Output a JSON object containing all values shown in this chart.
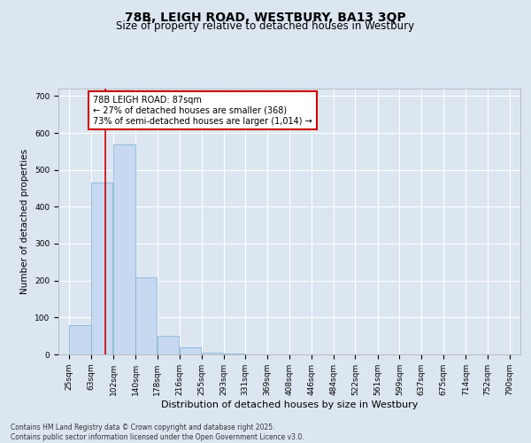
{
  "title_line1": "78B, LEIGH ROAD, WESTBURY, BA13 3QP",
  "title_line2": "Size of property relative to detached houses in Westbury",
  "xlabel": "Distribution of detached houses by size in Westbury",
  "ylabel": "Number of detached properties",
  "bins": [
    25,
    63,
    102,
    140,
    178,
    216,
    255,
    293,
    331,
    369,
    408,
    446,
    484,
    522,
    561,
    599,
    637,
    675,
    714,
    752,
    790
  ],
  "bin_labels": [
    "25sqm",
    "63sqm",
    "102sqm",
    "140sqm",
    "178sqm",
    "216sqm",
    "255sqm",
    "293sqm",
    "331sqm",
    "369sqm",
    "408sqm",
    "446sqm",
    "484sqm",
    "522sqm",
    "561sqm",
    "599sqm",
    "637sqm",
    "675sqm",
    "714sqm",
    "752sqm",
    "790sqm"
  ],
  "bar_values": [
    80,
    465,
    570,
    210,
    50,
    20,
    5,
    2,
    0,
    0,
    0,
    0,
    0,
    0,
    0,
    0,
    0,
    0,
    0,
    0
  ],
  "bar_color": "#c6d9f0",
  "bar_edge_color": "#7bafd4",
  "vline_x": 87,
  "vline_color": "#cc0000",
  "ylim": [
    0,
    720
  ],
  "yticks": [
    0,
    100,
    200,
    300,
    400,
    500,
    600,
    700
  ],
  "annotation_text": "78B LEIGH ROAD: 87sqm\n← 27% of detached houses are smaller (368)\n73% of semi-detached houses are larger (1,014) →",
  "annotation_box_color": "#ffffff",
  "annotation_box_edge": "#cc0000",
  "footer_text": "Contains HM Land Registry data © Crown copyright and database right 2025.\nContains public sector information licensed under the Open Government Licence v3.0.",
  "background_color": "#dce6f1",
  "plot_background_color": "#dce6f1",
  "grid_color": "#ffffff",
  "title1_fontsize": 10,
  "title2_fontsize": 8.5,
  "ylabel_fontsize": 7.5,
  "xlabel_fontsize": 8,
  "tick_fontsize": 6.5,
  "annotation_fontsize": 7,
  "footer_fontsize": 5.5
}
